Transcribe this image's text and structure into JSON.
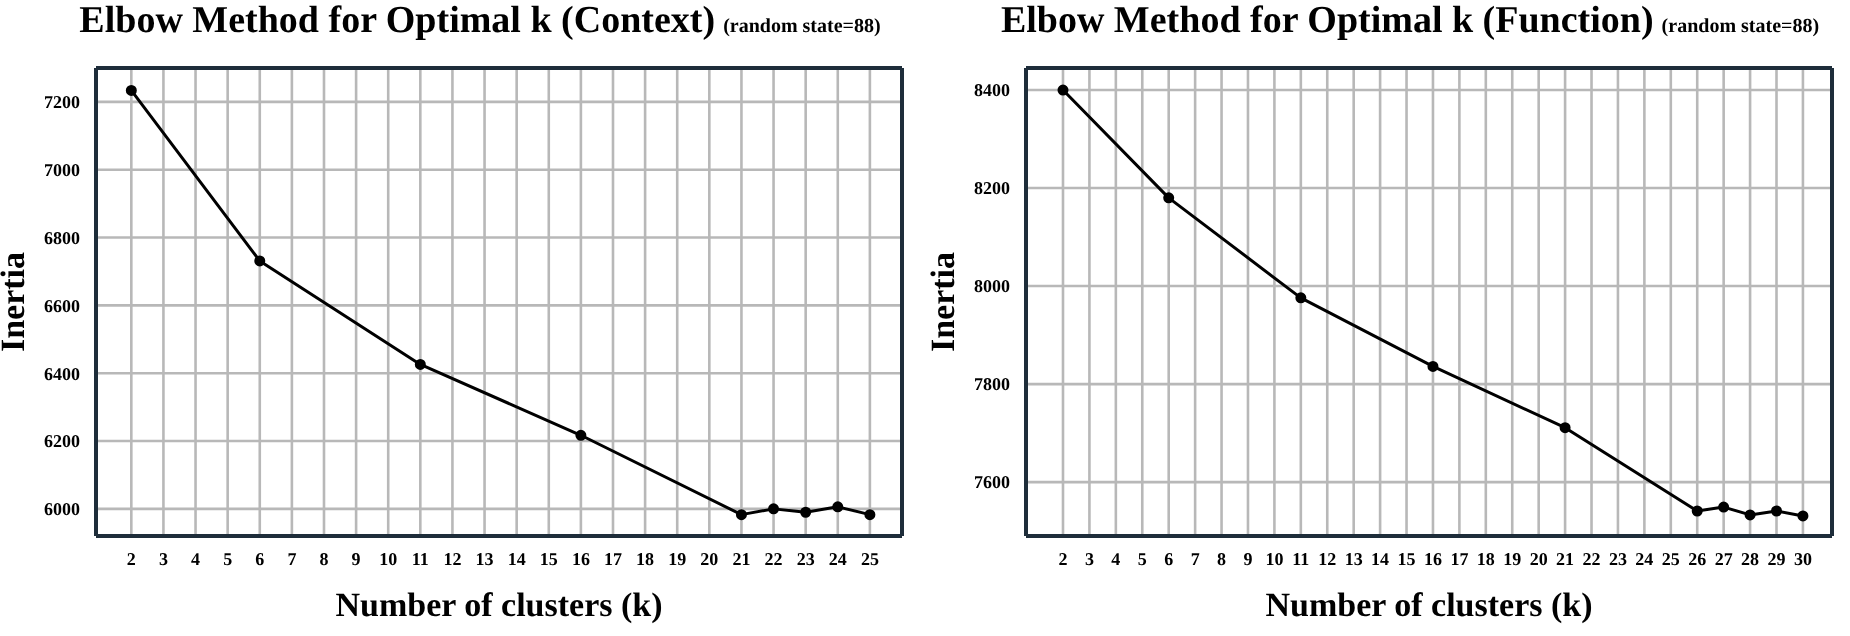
{
  "chart_data": [
    {
      "type": "line",
      "title": "Elbow Method for Optimal k (Context)",
      "subtitle": "(random state=88)",
      "xlabel": "Number of clusters (k)",
      "ylabel": "Inertia",
      "x": [
        2,
        6,
        11,
        16,
        21,
        22,
        23,
        24,
        25
      ],
      "series": [
        {
          "color": "#000000",
          "values": [
            7234,
            6731,
            6426,
            6217,
            5983,
            6000,
            5990,
            6006,
            5983
          ]
        }
      ],
      "xlim": [
        0.9,
        26
      ],
      "xticks": [
        2,
        3,
        4,
        5,
        6,
        7,
        8,
        9,
        10,
        11,
        12,
        13,
        14,
        15,
        16,
        17,
        18,
        19,
        20,
        21,
        22,
        23,
        24,
        25
      ],
      "ylim": [
        5920,
        7300
      ],
      "yticks": [
        6000,
        6200,
        6400,
        6600,
        6800,
        7000,
        7200
      ],
      "grid": true,
      "marker": "circle",
      "line_style": "solid"
    },
    {
      "type": "line",
      "title": "Elbow Method for Optimal k (Function)",
      "subtitle": "(random state=88)",
      "xlabel": "Number of clusters (k)",
      "ylabel": "Inertia",
      "x": [
        2,
        6,
        11,
        16,
        21,
        26,
        27,
        28,
        29,
        30
      ],
      "series": [
        {
          "color": "#000000",
          "values": [
            8400,
            8180,
            7976,
            7836,
            7711,
            7541,
            7549,
            7533,
            7541,
            7531
          ]
        }
      ],
      "xlim": [
        0.6,
        31.1
      ],
      "xticks": [
        2,
        3,
        4,
        5,
        6,
        7,
        8,
        9,
        10,
        11,
        12,
        13,
        14,
        15,
        16,
        17,
        18,
        19,
        20,
        21,
        22,
        23,
        24,
        25,
        26,
        27,
        28,
        29,
        30
      ],
      "ylim": [
        7490,
        8445
      ],
      "yticks": [
        7600,
        7800,
        8000,
        8200,
        8400
      ],
      "grid": true,
      "marker": "circle",
      "line_style": "solid"
    }
  ]
}
